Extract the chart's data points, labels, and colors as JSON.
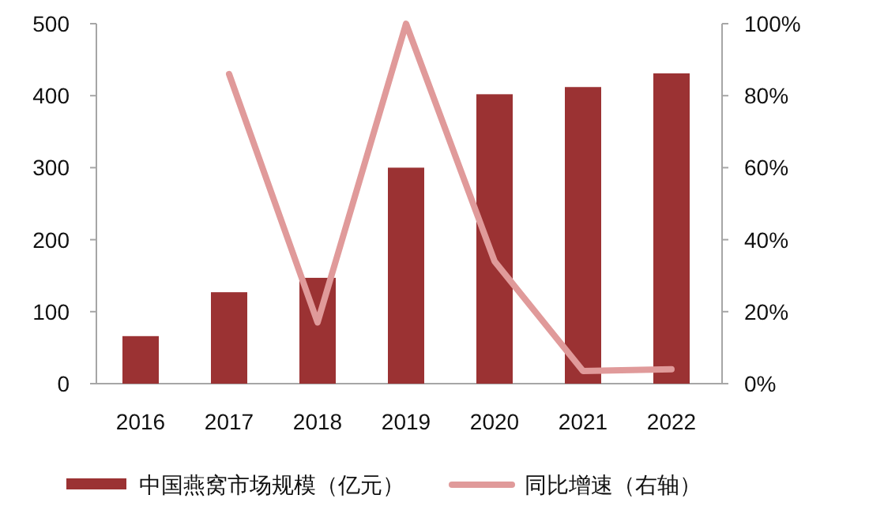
{
  "chart_data": {
    "type": "bar",
    "categories": [
      "2016",
      "2017",
      "2018",
      "2019",
      "2020",
      "2021",
      "2022"
    ],
    "series": [
      {
        "name": "中国燕窝市场规模（亿元）",
        "color": "#9b3233",
        "values": [
          66,
          127,
          147,
          300,
          402,
          412,
          431
        ]
      },
      {
        "name": "同比增速（右轴）",
        "type": "line",
        "axis": "y2",
        "color": "#e09a9a",
        "values": [
          null,
          86,
          17,
          100,
          34,
          3.5,
          4
        ]
      }
    ],
    "ylim": [
      0,
      500
    ],
    "yticks": [
      0,
      100,
      200,
      300,
      400,
      500
    ],
    "y2lim": [
      0,
      100
    ],
    "y2ticks": [
      {
        "value": 0,
        "label": "0%"
      },
      {
        "value": 20,
        "label": "20%"
      },
      {
        "value": 40,
        "label": "40%"
      },
      {
        "value": 60,
        "label": "60%"
      },
      {
        "value": 80,
        "label": "80%"
      },
      {
        "value": 100,
        "label": "100%"
      }
    ],
    "grid": false,
    "legend": "bottom",
    "marker": "none",
    "line_style": "solid"
  }
}
